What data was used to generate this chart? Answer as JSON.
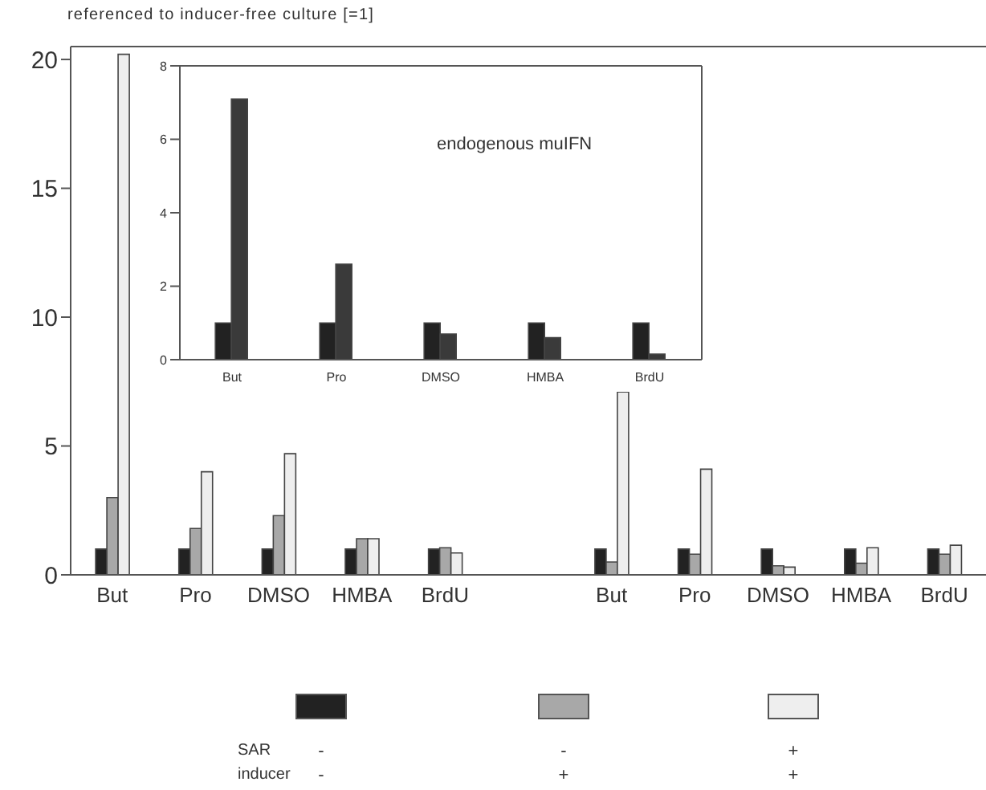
{
  "chart_data": [
    {
      "type": "bar",
      "ylabel": "referenced to inducer-free culture [=1]",
      "categories": [
        "But",
        "Pro",
        "DMSO",
        "HMBA",
        "BrdU",
        null,
        "But",
        "Pro",
        "DMSO",
        "HMBA",
        "BrdU"
      ],
      "series": [
        {
          "color": "#222222",
          "values": [
            1,
            1,
            1,
            1,
            1,
            null,
            1,
            1,
            1,
            1,
            1
          ]
        },
        {
          "color": "#a8a8a8",
          "values": [
            3.0,
            1.8,
            2.3,
            1.4,
            1.05,
            null,
            0.5,
            0.8,
            0.35,
            0.45,
            0.8
          ]
        },
        {
          "color": "#eeeeee",
          "values": [
            20.2,
            4.0,
            4.7,
            1.4,
            0.85,
            null,
            7.1,
            4.1,
            0.3,
            1.05,
            1.15
          ]
        }
      ],
      "ylim": [
        0,
        20.5
      ],
      "yticks": [
        0,
        5,
        10,
        15,
        20
      ],
      "grid": false,
      "annotations": [
        "SAR",
        "inducer",
        "-",
        "-",
        "-",
        "+",
        "+",
        "+"
      ]
    },
    {
      "type": "bar",
      "title": "endogenous muIFN",
      "categories": [
        "But",
        "Pro",
        "DMSO",
        "HMBA",
        "BrdU"
      ],
      "series": [
        {
          "color": "#222222",
          "values": [
            1,
            1,
            1,
            1,
            1
          ]
        },
        {
          "color": "#3a3a3a",
          "values": [
            7.1,
            2.6,
            0.7,
            0.6,
            0.15
          ]
        }
      ],
      "ylim": [
        0,
        8
      ],
      "yticks": [
        0,
        2,
        4,
        6,
        8
      ],
      "grid": false
    }
  ]
}
